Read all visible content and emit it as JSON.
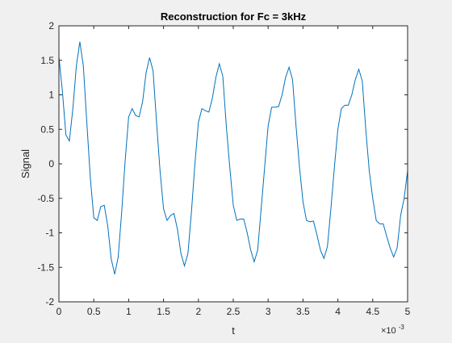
{
  "chart_data": {
    "type": "line",
    "title": "Reconstruction for Fc = 3kHz",
    "xlabel": "t",
    "ylabel": "Signal",
    "x_multiplier_label": "×10",
    "x_multiplier_exponent": "-3",
    "xlim": [
      0,
      5
    ],
    "ylim": [
      -2,
      2
    ],
    "x_ticks": [
      0,
      0.5,
      1,
      1.5,
      2,
      2.5,
      3,
      3.5,
      4,
      4.5,
      5
    ],
    "x_tick_labels": [
      "0",
      "0.5",
      "1",
      "1.5",
      "2",
      "2.5",
      "3",
      "3.5",
      "4",
      "4.5",
      "5"
    ],
    "y_ticks": [
      -2,
      -1.5,
      -1,
      -0.5,
      0,
      0.5,
      1,
      1.5,
      2
    ],
    "y_tick_labels": [
      "-2",
      "-1.5",
      "-1",
      "-0.5",
      "0",
      "0.5",
      "1",
      "1.5",
      "2"
    ],
    "grid": false,
    "line_color": "#0072bd",
    "series": [
      {
        "x": [
          0,
          0.05,
          0.1,
          0.15,
          0.2,
          0.25,
          0.3,
          0.35,
          0.4,
          0.45,
          0.5,
          0.55,
          0.6,
          0.65,
          0.7,
          0.75,
          0.8,
          0.85,
          0.9,
          0.95,
          1,
          1.05,
          1.1,
          1.15,
          1.2,
          1.25,
          1.3,
          1.35,
          1.4,
          1.45,
          1.5,
          1.55,
          1.6,
          1.65,
          1.7,
          1.75,
          1.8,
          1.85,
          1.9,
          1.95,
          2,
          2.05,
          2.1,
          2.15,
          2.2,
          2.25,
          2.3,
          2.35,
          2.4,
          2.45,
          2.5,
          2.55,
          2.6,
          2.65,
          2.7,
          2.75,
          2.8,
          2.85,
          2.9,
          2.95,
          3,
          3.05,
          3.1,
          3.15,
          3.2,
          3.25,
          3.3,
          3.35,
          3.4,
          3.45,
          3.5,
          3.55,
          3.6,
          3.65,
          3.7,
          3.75,
          3.8,
          3.85,
          3.9,
          3.95,
          4,
          4.05,
          4.1,
          4.15,
          4.2,
          4.25,
          4.3,
          4.35,
          4.4,
          4.45,
          4.5,
          4.55,
          4.6,
          4.65,
          4.7,
          4.75,
          4.8,
          4.85,
          4.9,
          4.95,
          5
        ],
        "y": [
          1.55,
          1.05,
          0.42,
          0.33,
          0.8,
          1.42,
          1.77,
          1.42,
          0.6,
          -0.2,
          -0.78,
          -0.82,
          -0.62,
          -0.6,
          -0.9,
          -1.38,
          -1.6,
          -1.35,
          -0.7,
          0.05,
          0.68,
          0.8,
          0.7,
          0.68,
          0.9,
          1.32,
          1.54,
          1.35,
          0.6,
          -0.1,
          -0.65,
          -0.82,
          -0.75,
          -0.72,
          -0.95,
          -1.3,
          -1.48,
          -1.3,
          -0.7,
          0.0,
          0.6,
          0.8,
          0.77,
          0.75,
          0.95,
          1.25,
          1.45,
          1.27,
          0.55,
          -0.05,
          -0.6,
          -0.82,
          -0.8,
          -0.8,
          -1.0,
          -1.25,
          -1.42,
          -1.25,
          -0.65,
          -0.05,
          0.55,
          0.82,
          0.82,
          0.83,
          1.0,
          1.25,
          1.4,
          1.22,
          0.55,
          -0.05,
          -0.55,
          -0.82,
          -0.84,
          -0.83,
          -1.03,
          -1.25,
          -1.37,
          -1.2,
          -0.65,
          -0.05,
          0.5,
          0.8,
          0.85,
          0.85,
          1.0,
          1.22,
          1.37,
          1.2,
          0.5,
          -0.1,
          -0.5,
          -0.82,
          -0.87,
          -0.87,
          -1.05,
          -1.22,
          -1.35,
          -1.22,
          -0.75,
          -0.5,
          -0.1
        ]
      }
    ]
  }
}
